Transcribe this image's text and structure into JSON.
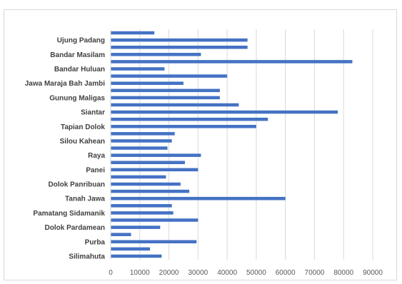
{
  "chart_data": {
    "type": "bar",
    "orientation": "horizontal",
    "bar_color": "#4472C4",
    "grid": true,
    "grid_color": "#d9d9d9",
    "xlim": [
      0,
      90000
    ],
    "x_ticks": [
      "0",
      "10000",
      "20000",
      "30000",
      "40000",
      "50000",
      "60000",
      "70000",
      "80000",
      "90000"
    ],
    "categories": [
      "",
      "Ujung Padang",
      "",
      "Bandar Masilam",
      "",
      "Bandar Huluan",
      "",
      "Jawa Maraja Bah Jambi",
      "",
      "Gunung Maligas",
      "",
      "Siantar",
      "",
      "Tapian Dolok",
      "",
      "Silou Kahean",
      "",
      "Raya",
      "",
      "Panei",
      "",
      "Dolok Panribuan",
      "",
      "Tanah Jawa",
      "",
      "Pamatang Sidamanik",
      "",
      "Dolok Pardamean",
      "",
      "Purba",
      "",
      "Silimahuta"
    ],
    "values": [
      15000,
      47000,
      47000,
      31000,
      83000,
      18500,
      40000,
      25000,
      37500,
      37500,
      44000,
      78000,
      54000,
      50000,
      22000,
      21000,
      19500,
      31000,
      25500,
      30000,
      19000,
      24000,
      27000,
      60000,
      21000,
      21500,
      30000,
      17000,
      7000,
      29500,
      13500,
      17500
    ]
  }
}
